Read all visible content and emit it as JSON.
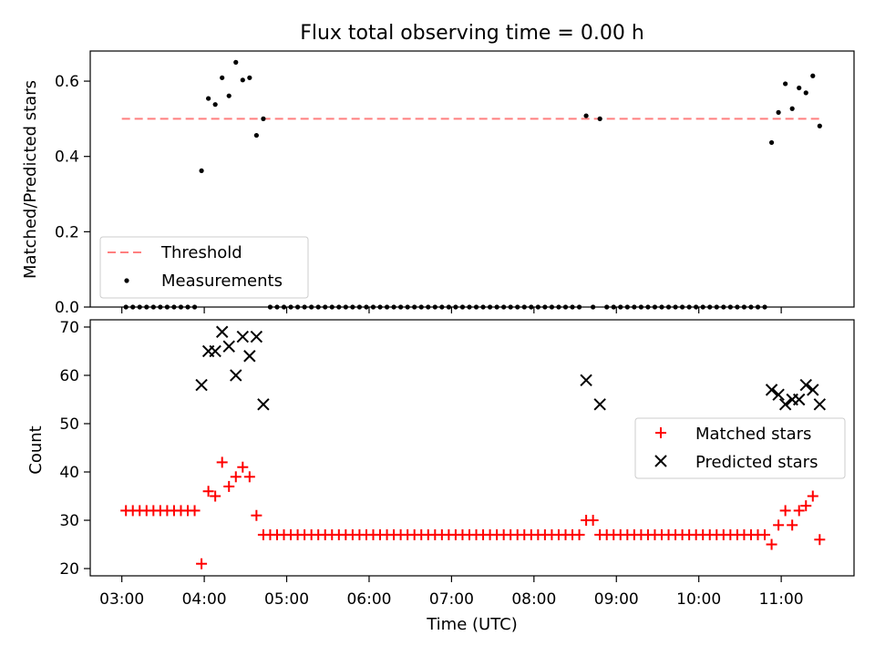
{
  "figure_title": "Flux total observing time = 0.00 h",
  "colors": {
    "threshold": "#ff7f7f",
    "measurement": "#000000",
    "matched": "#ff0000",
    "predicted": "#000000"
  },
  "chart_data": [
    {
      "type": "scatter",
      "title": "Flux total observing time = 0.00 h",
      "xlabel": "",
      "ylabel": "Matched/Predicted stars",
      "xlim": [
        "02:37",
        "11:53"
      ],
      "ylim": [
        0,
        0.68
      ],
      "y_ticks": [
        "0.0",
        "0.2",
        "0.4",
        "0.6"
      ],
      "x_ticks": [
        "03:00",
        "04:00",
        "05:00",
        "06:00",
        "07:00",
        "08:00",
        "09:00",
        "10:00",
        "11:00"
      ],
      "grid": false,
      "legend": {
        "placement": "lower-left",
        "entries": [
          "Threshold",
          "Measurements"
        ]
      },
      "threshold": {
        "name": "Threshold",
        "value": 0.5,
        "x_range": [
          "03:00",
          "11:28"
        ],
        "style": "dashed"
      },
      "series": [
        {
          "name": "Measurements",
          "points": [
            [
              "03:03",
              0
            ],
            [
              "03:08",
              0
            ],
            [
              "03:13",
              0
            ],
            [
              "03:18",
              0
            ],
            [
              "03:23",
              0
            ],
            [
              "03:28",
              0
            ],
            [
              "03:33",
              0
            ],
            [
              "03:38",
              0
            ],
            [
              "03:43",
              0
            ],
            [
              "03:48",
              0
            ],
            [
              "03:53",
              0
            ],
            [
              "03:58",
              0.362
            ],
            [
              "04:03",
              0.554
            ],
            [
              "04:08",
              0.538
            ],
            [
              "04:13",
              0.609
            ],
            [
              "04:18",
              0.561
            ],
            [
              "04:23",
              0.65
            ],
            [
              "04:28",
              0.603
            ],
            [
              "04:33",
              0.609
            ],
            [
              "04:38",
              0.456
            ],
            [
              "04:43",
              0.5
            ],
            [
              "04:48",
              0
            ],
            [
              "04:53",
              0
            ],
            [
              "04:58",
              0
            ],
            [
              "05:03",
              0
            ],
            [
              "05:08",
              0
            ],
            [
              "05:13",
              0
            ],
            [
              "05:18",
              0
            ],
            [
              "05:23",
              0
            ],
            [
              "05:28",
              0
            ],
            [
              "05:33",
              0
            ],
            [
              "05:38",
              0
            ],
            [
              "05:43",
              0
            ],
            [
              "05:48",
              0
            ],
            [
              "05:53",
              0
            ],
            [
              "05:58",
              0
            ],
            [
              "06:03",
              0
            ],
            [
              "06:08",
              0
            ],
            [
              "06:13",
              0
            ],
            [
              "06:18",
              0
            ],
            [
              "06:23",
              0
            ],
            [
              "06:28",
              0
            ],
            [
              "06:33",
              0
            ],
            [
              "06:38",
              0
            ],
            [
              "06:43",
              0
            ],
            [
              "06:48",
              0
            ],
            [
              "06:53",
              0
            ],
            [
              "06:58",
              0
            ],
            [
              "07:03",
              0
            ],
            [
              "07:08",
              0
            ],
            [
              "07:13",
              0
            ],
            [
              "07:18",
              0
            ],
            [
              "07:23",
              0
            ],
            [
              "07:28",
              0
            ],
            [
              "07:33",
              0
            ],
            [
              "07:38",
              0
            ],
            [
              "07:43",
              0
            ],
            [
              "07:48",
              0
            ],
            [
              "07:53",
              0
            ],
            [
              "07:58",
              0
            ],
            [
              "08:03",
              0
            ],
            [
              "08:08",
              0
            ],
            [
              "08:13",
              0
            ],
            [
              "08:18",
              0
            ],
            [
              "08:23",
              0
            ],
            [
              "08:28",
              0
            ],
            [
              "08:33",
              0
            ],
            [
              "08:38",
              0.508
            ],
            [
              "08:43",
              0
            ],
            [
              "08:48",
              0.5
            ],
            [
              "08:53",
              0
            ],
            [
              "08:58",
              0
            ],
            [
              "09:03",
              0
            ],
            [
              "09:08",
              0
            ],
            [
              "09:13",
              0
            ],
            [
              "09:18",
              0
            ],
            [
              "09:23",
              0
            ],
            [
              "09:28",
              0
            ],
            [
              "09:33",
              0
            ],
            [
              "09:38",
              0
            ],
            [
              "09:43",
              0
            ],
            [
              "09:48",
              0
            ],
            [
              "09:53",
              0
            ],
            [
              "09:58",
              0
            ],
            [
              "10:03",
              0
            ],
            [
              "10:08",
              0
            ],
            [
              "10:13",
              0
            ],
            [
              "10:18",
              0
            ],
            [
              "10:23",
              0
            ],
            [
              "10:28",
              0
            ],
            [
              "10:33",
              0
            ],
            [
              "10:38",
              0
            ],
            [
              "10:43",
              0
            ],
            [
              "10:48",
              0
            ],
            [
              "10:53",
              0.437
            ],
            [
              "10:58",
              0.517
            ],
            [
              "11:03",
              0.593
            ],
            [
              "11:08",
              0.527
            ],
            [
              "11:13",
              0.582
            ],
            [
              "11:18",
              0.569
            ],
            [
              "11:23",
              0.614
            ],
            [
              "11:28",
              0.481
            ]
          ]
        }
      ]
    },
    {
      "type": "scatter",
      "title": "",
      "xlabel": "Time (UTC)",
      "ylabel": "Count",
      "xlim": [
        "02:37",
        "11:53"
      ],
      "ylim": [
        18.5,
        71.5
      ],
      "y_ticks": [
        "20",
        "30",
        "40",
        "50",
        "60",
        "70"
      ],
      "x_ticks": [
        "03:00",
        "04:00",
        "05:00",
        "06:00",
        "07:00",
        "08:00",
        "09:00",
        "10:00",
        "11:00"
      ],
      "grid": false,
      "legend": {
        "placement": "center-right",
        "entries": [
          "Matched stars",
          "Predicted stars"
        ]
      },
      "series": [
        {
          "name": "Matched stars",
          "marker": "plus",
          "points": [
            [
              "03:03",
              32
            ],
            [
              "03:08",
              32
            ],
            [
              "03:13",
              32
            ],
            [
              "03:18",
              32
            ],
            [
              "03:23",
              32
            ],
            [
              "03:28",
              32
            ],
            [
              "03:33",
              32
            ],
            [
              "03:38",
              32
            ],
            [
              "03:43",
              32
            ],
            [
              "03:48",
              32
            ],
            [
              "03:53",
              32
            ],
            [
              "03:58",
              21
            ],
            [
              "04:03",
              36
            ],
            [
              "04:08",
              35
            ],
            [
              "04:13",
              42
            ],
            [
              "04:18",
              37
            ],
            [
              "04:23",
              39
            ],
            [
              "04:28",
              41
            ],
            [
              "04:33",
              39
            ],
            [
              "04:38",
              31
            ],
            [
              "04:43",
              27
            ],
            [
              "04:48",
              27
            ],
            [
              "04:53",
              27
            ],
            [
              "04:58",
              27
            ],
            [
              "05:03",
              27
            ],
            [
              "05:08",
              27
            ],
            [
              "05:13",
              27
            ],
            [
              "05:18",
              27
            ],
            [
              "05:23",
              27
            ],
            [
              "05:28",
              27
            ],
            [
              "05:33",
              27
            ],
            [
              "05:38",
              27
            ],
            [
              "05:43",
              27
            ],
            [
              "05:48",
              27
            ],
            [
              "05:53",
              27
            ],
            [
              "05:58",
              27
            ],
            [
              "06:03",
              27
            ],
            [
              "06:08",
              27
            ],
            [
              "06:13",
              27
            ],
            [
              "06:18",
              27
            ],
            [
              "06:23",
              27
            ],
            [
              "06:28",
              27
            ],
            [
              "06:33",
              27
            ],
            [
              "06:38",
              27
            ],
            [
              "06:43",
              27
            ],
            [
              "06:48",
              27
            ],
            [
              "06:53",
              27
            ],
            [
              "06:58",
              27
            ],
            [
              "07:03",
              27
            ],
            [
              "07:08",
              27
            ],
            [
              "07:13",
              27
            ],
            [
              "07:18",
              27
            ],
            [
              "07:23",
              27
            ],
            [
              "07:28",
              27
            ],
            [
              "07:33",
              27
            ],
            [
              "07:38",
              27
            ],
            [
              "07:43",
              27
            ],
            [
              "07:48",
              27
            ],
            [
              "07:53",
              27
            ],
            [
              "07:58",
              27
            ],
            [
              "08:03",
              27
            ],
            [
              "08:08",
              27
            ],
            [
              "08:13",
              27
            ],
            [
              "08:18",
              27
            ],
            [
              "08:23",
              27
            ],
            [
              "08:28",
              27
            ],
            [
              "08:33",
              27
            ],
            [
              "08:38",
              30
            ],
            [
              "08:43",
              30
            ],
            [
              "08:48",
              27
            ],
            [
              "08:53",
              27
            ],
            [
              "08:58",
              27
            ],
            [
              "09:03",
              27
            ],
            [
              "09:08",
              27
            ],
            [
              "09:13",
              27
            ],
            [
              "09:18",
              27
            ],
            [
              "09:23",
              27
            ],
            [
              "09:28",
              27
            ],
            [
              "09:33",
              27
            ],
            [
              "09:38",
              27
            ],
            [
              "09:43",
              27
            ],
            [
              "09:48",
              27
            ],
            [
              "09:53",
              27
            ],
            [
              "09:58",
              27
            ],
            [
              "10:03",
              27
            ],
            [
              "10:08",
              27
            ],
            [
              "10:13",
              27
            ],
            [
              "10:18",
              27
            ],
            [
              "10:23",
              27
            ],
            [
              "10:28",
              27
            ],
            [
              "10:33",
              27
            ],
            [
              "10:38",
              27
            ],
            [
              "10:43",
              27
            ],
            [
              "10:48",
              27
            ],
            [
              "10:53",
              25
            ],
            [
              "10:58",
              29
            ],
            [
              "11:03",
              32
            ],
            [
              "11:08",
              29
            ],
            [
              "11:13",
              32
            ],
            [
              "11:18",
              33
            ],
            [
              "11:23",
              35
            ],
            [
              "11:28",
              26
            ]
          ]
        },
        {
          "name": "Predicted stars",
          "marker": "x",
          "points": [
            [
              "03:58",
              58
            ],
            [
              "04:03",
              65
            ],
            [
              "04:08",
              65
            ],
            [
              "04:13",
              69
            ],
            [
              "04:18",
              66
            ],
            [
              "04:23",
              60
            ],
            [
              "04:28",
              68
            ],
            [
              "04:33",
              64
            ],
            [
              "04:38",
              68
            ],
            [
              "04:43",
              54
            ],
            [
              "08:38",
              59
            ],
            [
              "08:48",
              54
            ],
            [
              "10:53",
              57
            ],
            [
              "10:58",
              56
            ],
            [
              "11:03",
              54
            ],
            [
              "11:08",
              55
            ],
            [
              "11:13",
              55
            ],
            [
              "11:18",
              58
            ],
            [
              "11:23",
              57
            ],
            [
              "11:28",
              54
            ]
          ]
        }
      ]
    }
  ]
}
